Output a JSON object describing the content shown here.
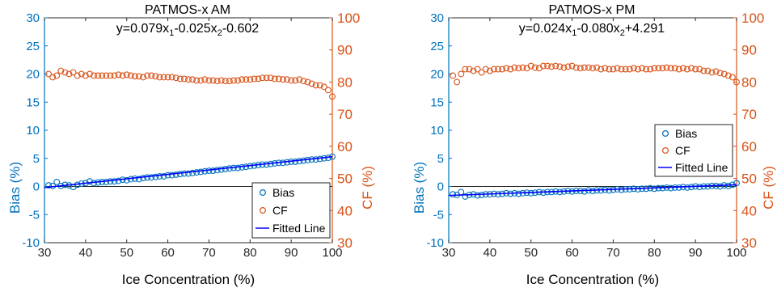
{
  "chart_data": [
    {
      "type": "scatter",
      "title": "PATMOS-x AM",
      "equation": {
        "prefix": "y=0.079x",
        "sub1": "1",
        "mid": "-0.025x",
        "sub2": "2",
        "suffix": "-0.602"
      },
      "xlabel": "Ice Concentration (%)",
      "ylabel_left": "Bias (%)",
      "ylabel_right": "CF (%)",
      "xlim": [
        30,
        100
      ],
      "ylim_left": [
        -10,
        30
      ],
      "ylim_right": [
        30,
        100
      ],
      "xticks": [
        "30",
        "40",
        "50",
        "60",
        "70",
        "80",
        "90",
        "100"
      ],
      "yticks_left": [
        "-10",
        "-5",
        "0",
        "5",
        "10",
        "15",
        "20",
        "25",
        "30"
      ],
      "yticks_right": [
        "30",
        "40",
        "50",
        "60",
        "70",
        "80",
        "90",
        "100"
      ],
      "legend": {
        "location": "bottom-right",
        "entries": [
          "Bias",
          "CF",
          "Fitted Line"
        ]
      },
      "colors": {
        "bias": "#0072BD",
        "cf": "#D95319",
        "fit": "#0000FF",
        "left_axis": "#0072BD",
        "right_axis": "#D95319"
      },
      "x": [
        31,
        32,
        33,
        34,
        35,
        36,
        37,
        38,
        39,
        40,
        41,
        42,
        43,
        44,
        45,
        46,
        47,
        48,
        49,
        50,
        51,
        52,
        53,
        54,
        55,
        56,
        57,
        58,
        59,
        60,
        61,
        62,
        63,
        64,
        65,
        66,
        67,
        68,
        69,
        70,
        71,
        72,
        73,
        74,
        75,
        76,
        77,
        78,
        79,
        80,
        81,
        82,
        83,
        84,
        85,
        86,
        87,
        88,
        89,
        90,
        91,
        92,
        93,
        94,
        95,
        96,
        97,
        98,
        99,
        100
      ],
      "series": [
        {
          "name": "Bias",
          "axis": "left",
          "values": [
            0.2,
            0.1,
            0.8,
            0.1,
            0.3,
            0.2,
            -0.1,
            0.3,
            0.5,
            0.6,
            0.9,
            0.6,
            0.7,
            0.8,
            0.8,
            0.9,
            0.9,
            1.0,
            1.2,
            1.1,
            1.3,
            1.4,
            1.3,
            1.5,
            1.6,
            1.6,
            1.7,
            1.8,
            1.8,
            2.0,
            2.0,
            2.1,
            2.2,
            2.3,
            2.3,
            2.4,
            2.5,
            2.6,
            2.7,
            2.8,
            2.8,
            2.9,
            3.0,
            3.1,
            3.2,
            3.3,
            3.3,
            3.4,
            3.5,
            3.6,
            3.7,
            3.8,
            3.9,
            3.9,
            4.0,
            4.1,
            4.2,
            4.2,
            4.3,
            4.4,
            4.4,
            4.5,
            4.6,
            4.7,
            4.8,
            4.8,
            4.9,
            5.0,
            5.1,
            5.3
          ]
        },
        {
          "name": "CF",
          "axis": "right",
          "values": [
            82.5,
            81.5,
            82.0,
            83.5,
            83.0,
            82.5,
            83.0,
            82.0,
            82.5,
            82.0,
            82.5,
            82.0,
            82.0,
            82.0,
            82.0,
            82.0,
            82.0,
            82.3,
            82.0,
            82.3,
            82.0,
            81.8,
            81.8,
            81.5,
            82.0,
            82.0,
            81.8,
            81.5,
            81.5,
            81.5,
            81.5,
            81.3,
            81.0,
            81.0,
            80.8,
            80.8,
            80.5,
            80.5,
            80.8,
            80.5,
            80.5,
            80.3,
            80.5,
            80.3,
            80.3,
            80.5,
            80.5,
            80.8,
            80.8,
            80.8,
            81.0,
            81.0,
            81.3,
            81.3,
            81.3,
            81.0,
            81.0,
            80.8,
            80.8,
            80.5,
            80.5,
            80.8,
            80.3,
            80.0,
            79.5,
            79.0,
            79.0,
            78.5,
            77.5,
            75.5
          ]
        }
      ],
      "fit": {
        "name": "Fitted Line",
        "axis": "left",
        "x": [
          30,
          100
        ],
        "y": [
          -0.2,
          5.3
        ]
      }
    },
    {
      "type": "scatter",
      "title": "PATMOS-x PM",
      "equation": {
        "prefix": "y=0.024x",
        "sub1": "1",
        "mid": "-0.080x",
        "sub2": "2",
        "suffix": "+4.291"
      },
      "xlabel": "Ice Concentration (%)",
      "ylabel_left": "Bias (%)",
      "ylabel_right": "CF (%)",
      "xlim": [
        30,
        100
      ],
      "ylim_left": [
        -10,
        30
      ],
      "ylim_right": [
        30,
        100
      ],
      "xticks": [
        "30",
        "40",
        "50",
        "60",
        "70",
        "80",
        "90",
        "100"
      ],
      "yticks_left": [
        "-10",
        "-5",
        "0",
        "5",
        "10",
        "15",
        "20",
        "25",
        "30"
      ],
      "yticks_right": [
        "30",
        "40",
        "50",
        "60",
        "70",
        "80",
        "90",
        "100"
      ],
      "legend": {
        "location": "center-right",
        "entries": [
          "Bias",
          "CF",
          "Fitted Line"
        ]
      },
      "colors": {
        "bias": "#0072BD",
        "cf": "#D95319",
        "fit": "#0000FF",
        "left_axis": "#0072BD",
        "right_axis": "#D95319"
      },
      "x": [
        31,
        32,
        33,
        34,
        35,
        36,
        37,
        38,
        39,
        40,
        41,
        42,
        43,
        44,
        45,
        46,
        47,
        48,
        49,
        50,
        51,
        52,
        53,
        54,
        55,
        56,
        57,
        58,
        59,
        60,
        61,
        62,
        63,
        64,
        65,
        66,
        67,
        68,
        69,
        70,
        71,
        72,
        73,
        74,
        75,
        76,
        77,
        78,
        79,
        80,
        81,
        82,
        83,
        84,
        85,
        86,
        87,
        88,
        89,
        90,
        91,
        92,
        93,
        94,
        95,
        96,
        97,
        98,
        99,
        100
      ],
      "series": [
        {
          "name": "Bias",
          "axis": "left",
          "values": [
            -1.4,
            -1.5,
            -1.0,
            -1.8,
            -1.5,
            -1.4,
            -1.6,
            -1.5,
            -1.4,
            -1.4,
            -1.3,
            -1.4,
            -1.3,
            -1.2,
            -1.3,
            -1.2,
            -1.3,
            -1.2,
            -1.1,
            -1.2,
            -1.1,
            -1.0,
            -1.1,
            -1.0,
            -1.0,
            -0.9,
            -1.0,
            -0.9,
            -0.8,
            -0.9,
            -0.8,
            -0.8,
            -0.9,
            -0.7,
            -0.8,
            -0.7,
            -0.7,
            -0.6,
            -0.7,
            -0.6,
            -0.5,
            -0.6,
            -0.5,
            -0.5,
            -0.4,
            -0.5,
            -0.4,
            -0.4,
            -0.3,
            -0.4,
            -0.3,
            -0.3,
            -0.2,
            -0.3,
            -0.2,
            -0.2,
            -0.1,
            -0.2,
            -0.1,
            0.0,
            -0.1,
            0.0,
            0.0,
            0.1,
            0.1,
            0.0,
            0.2,
            0.1,
            0.3,
            0.6
          ]
        },
        {
          "name": "CF",
          "axis": "right",
          "values": [
            82.0,
            80.0,
            82.5,
            84.0,
            84.0,
            83.5,
            84.0,
            83.0,
            84.0,
            83.5,
            84.0,
            84.0,
            84.0,
            84.3,
            84.0,
            84.5,
            84.3,
            84.5,
            84.3,
            85.0,
            84.5,
            84.3,
            85.0,
            85.0,
            84.8,
            85.0,
            84.8,
            84.5,
            84.8,
            85.0,
            84.5,
            84.3,
            84.5,
            84.5,
            84.3,
            84.5,
            84.0,
            84.3,
            84.0,
            84.0,
            84.3,
            84.0,
            84.0,
            84.0,
            84.3,
            84.0,
            84.3,
            84.0,
            84.0,
            84.3,
            84.3,
            84.3,
            84.5,
            84.3,
            84.3,
            84.0,
            84.3,
            84.0,
            84.3,
            84.0,
            84.0,
            83.5,
            83.5,
            83.0,
            83.3,
            82.8,
            82.5,
            82.0,
            81.5,
            80.0
          ]
        }
      ],
      "fit": {
        "name": "Fitted Line",
        "axis": "left",
        "x": [
          30,
          100
        ],
        "y": [
          -1.6,
          0.3
        ]
      }
    }
  ]
}
